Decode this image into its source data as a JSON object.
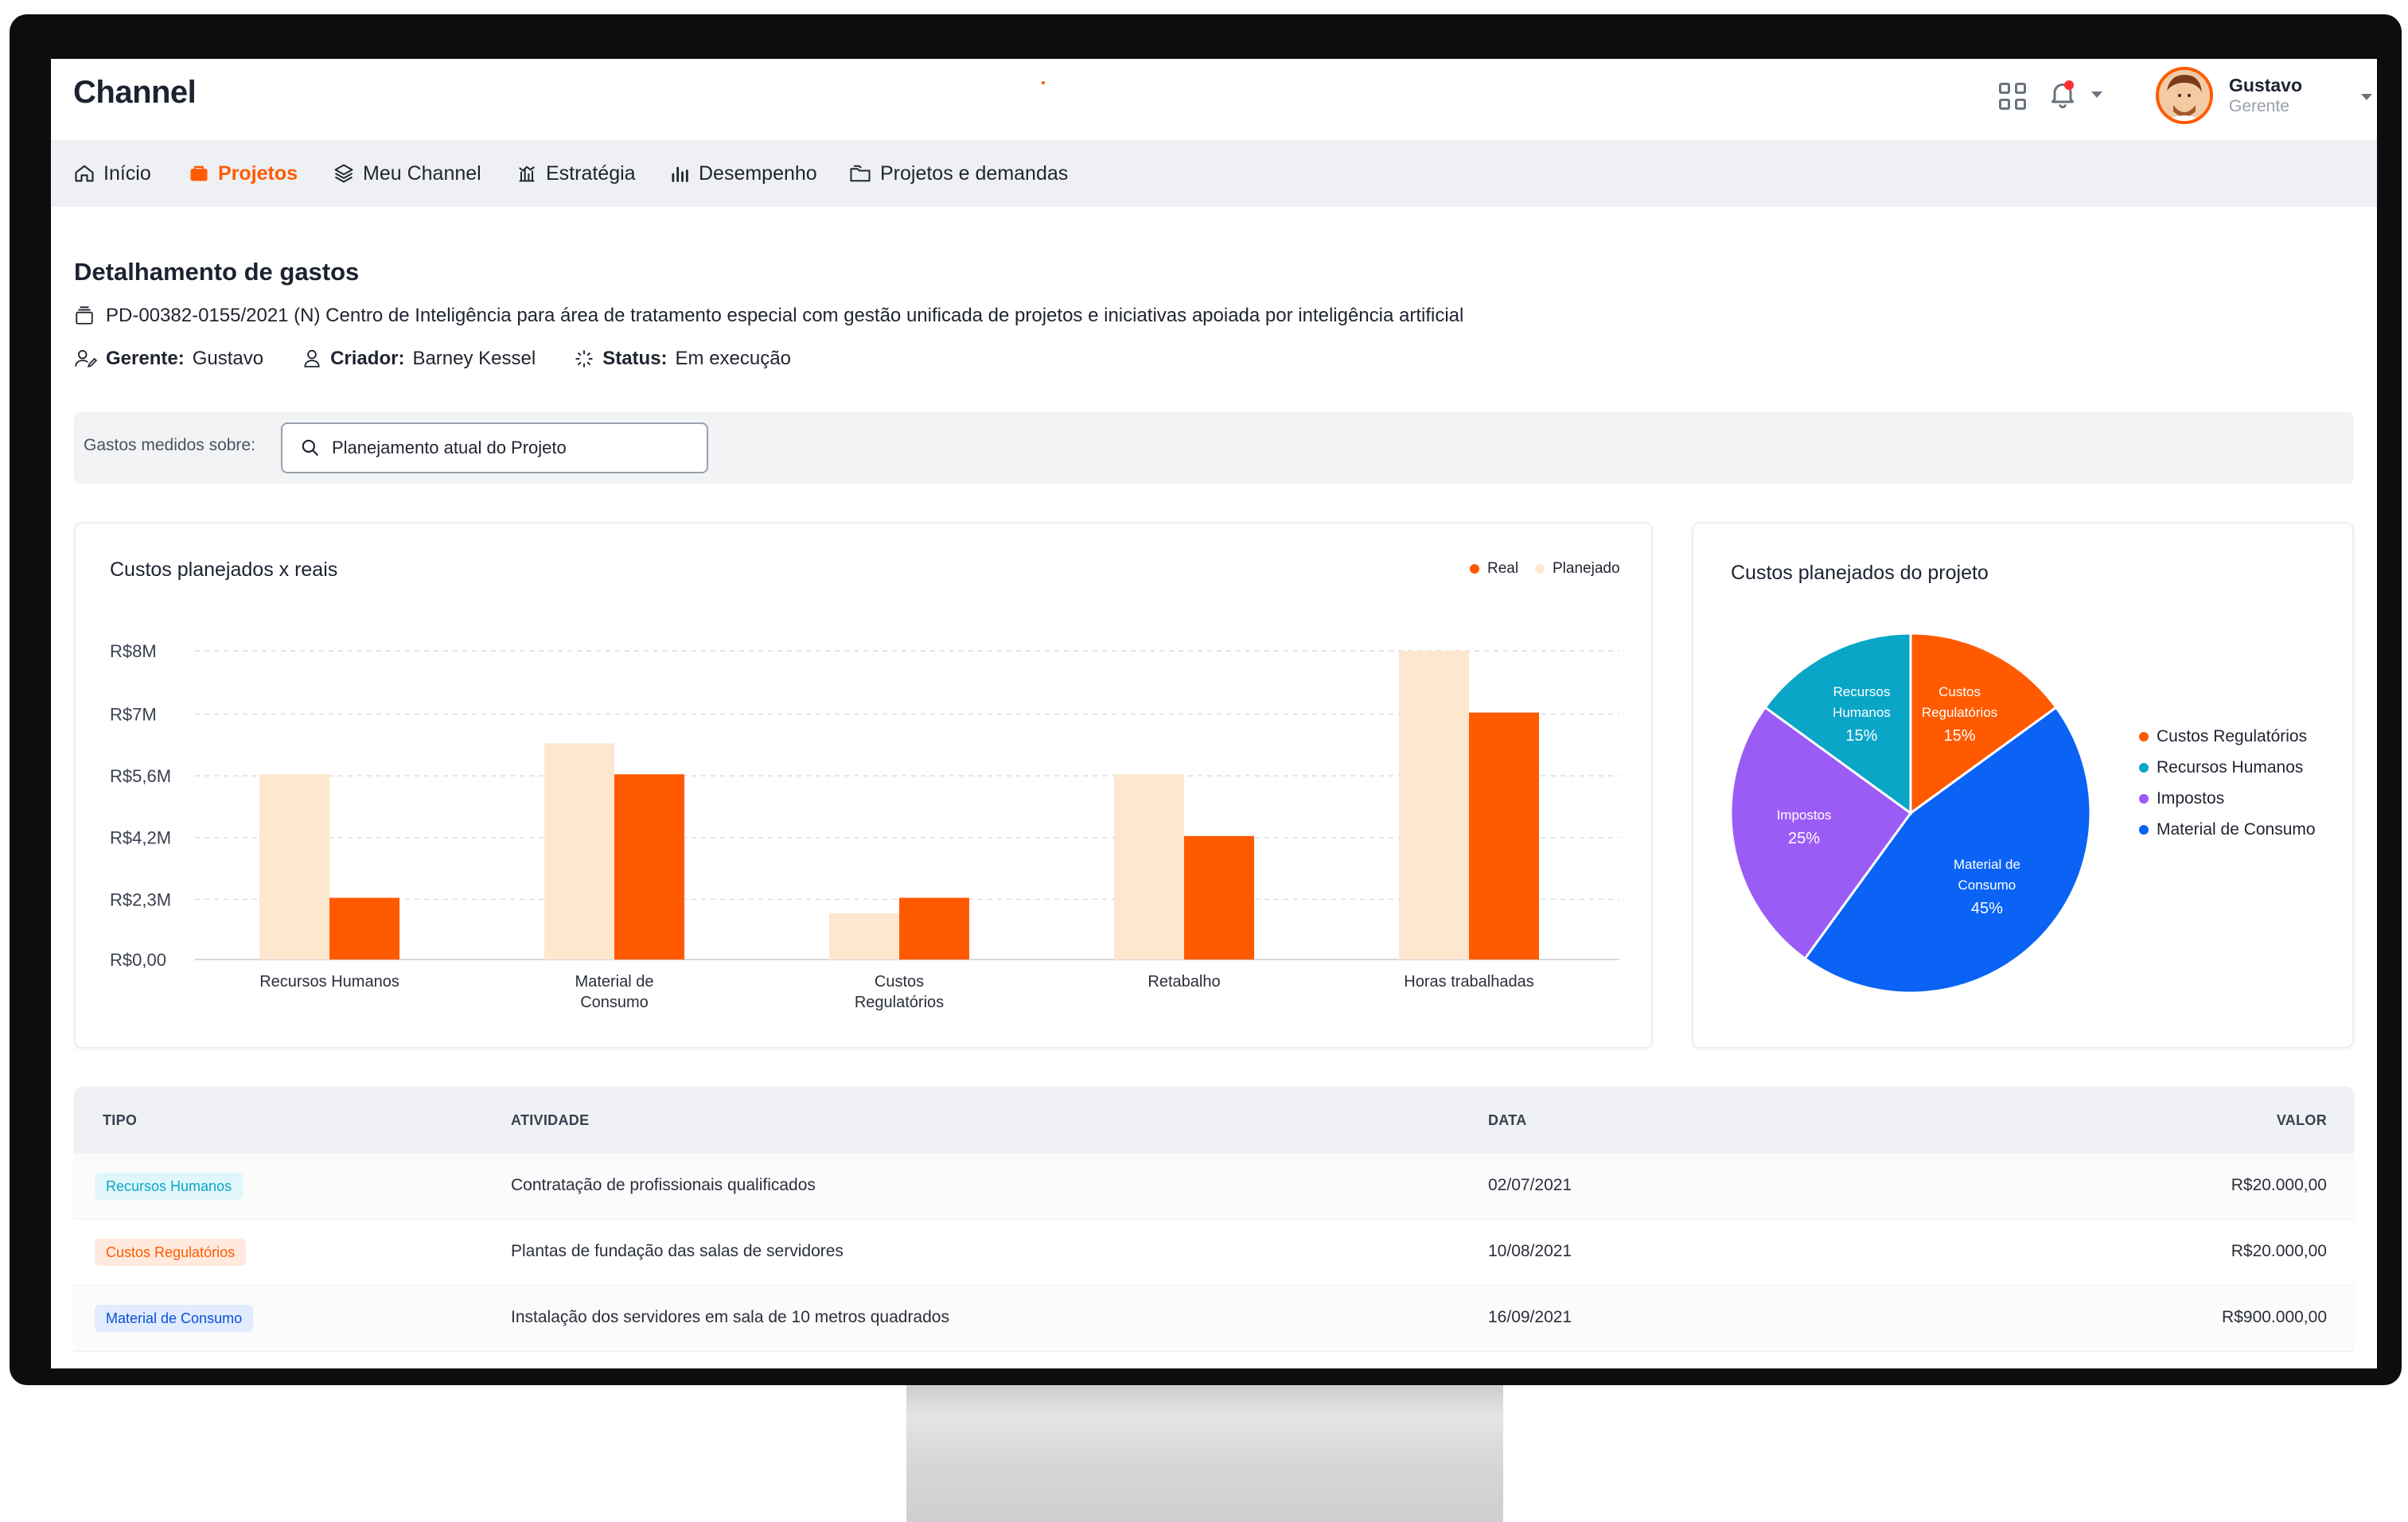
{
  "app": {
    "brand": "Channel",
    "user": {
      "name": "Gustavo",
      "role": "Gerente"
    },
    "icons": [
      "apps-grid-icon",
      "bell-icon",
      "chevron-down-icon",
      "avatar"
    ]
  },
  "nav": {
    "items": [
      {
        "label": "Início",
        "icon": "home-icon",
        "active": false
      },
      {
        "label": "Projetos",
        "icon": "briefcase-icon",
        "active": true
      },
      {
        "label": "Meu Channel",
        "icon": "layers-icon",
        "active": false
      },
      {
        "label": "Estratégia",
        "icon": "strategy-icon",
        "active": false
      },
      {
        "label": "Desempenho",
        "icon": "bar-chart-icon",
        "active": false
      },
      {
        "label": "Projetos e demandas",
        "icon": "folders-icon",
        "active": false
      }
    ]
  },
  "header": {
    "title": "Detalhamento de gastos",
    "project": "PD-00382-0155/2021 (N) Centro de Inteligência para área de tratamento especial com gestão unificada de projetos e iniciativas apoiada por inteligência artificial",
    "manager_label": "Gerente:",
    "manager": "Gustavo",
    "creator_label": "Criador:",
    "creator": "Barney Kessel",
    "status_label": "Status:",
    "status": "Em execução"
  },
  "filter": {
    "label": "Gastos medidos sobre:",
    "value": "Planejamento atual do Projeto"
  },
  "colors": {
    "accent": "#FF5A00",
    "planned": "#FDE7CF",
    "teal": "#0AA6C8",
    "purple": "#9B5CF6",
    "blue": "#0A63F5"
  },
  "chart_data": [
    {
      "type": "bar",
      "title": "Custos planejados x reais",
      "categories": [
        "Recursos Humanos",
        "Material de Consumo",
        "Custos Regulatórios",
        "Retabalho",
        "Horas trabalhadas"
      ],
      "category_lines": [
        [
          "Recursos Humanos"
        ],
        [
          "Material de",
          "Consumo"
        ],
        [
          "Custos",
          "Regulatórios"
        ],
        [
          "Retabalho"
        ],
        [
          "Horas trabalhadas"
        ]
      ],
      "series": [
        {
          "name": "Planejado",
          "color": "#FDE7CF",
          "values": [
            6.0,
            7.0,
            1.5,
            6.0,
            10.0
          ]
        },
        {
          "name": "Real",
          "color": "#FF5A00",
          "values": [
            2.0,
            6.0,
            2.0,
            4.0,
            8.0
          ]
        }
      ],
      "legend": [
        "Real",
        "Planejado"
      ],
      "legend_position": "top-right",
      "y_ticks": [
        "R$0,00",
        "R$2,3M",
        "R$4,2M",
        "R$5,6M",
        "R$7M",
        "R$8M"
      ],
      "ylim": [
        0,
        10
      ],
      "grid": true
    },
    {
      "type": "pie",
      "title": "Custos planejados do projeto",
      "slices": [
        {
          "label": "Custos Regulatórios",
          "lines": [
            "Custos",
            "Regulatórios"
          ],
          "value": 15,
          "pct": "15%",
          "color": "#FF5A00"
        },
        {
          "label": "Material de Consumo",
          "lines": [
            "Material de",
            "Consumo"
          ],
          "value": 45,
          "pct": "45%",
          "color": "#0A63F5"
        },
        {
          "label": "Impostos",
          "lines": [
            "Impostos"
          ],
          "value": 25,
          "pct": "25%",
          "color": "#9B5CF6"
        },
        {
          "label": "Recursos Humanos",
          "lines": [
            "Recursos",
            "Humanos"
          ],
          "value": 15,
          "pct": "15%",
          "color": "#0AA6C8"
        }
      ],
      "legend": [
        {
          "label": "Custos Regulatórios",
          "color": "#FF5A00"
        },
        {
          "label": "Recursos Humanos",
          "color": "#0AA6C8"
        },
        {
          "label": "Impostos",
          "color": "#9B5CF6"
        },
        {
          "label": "Material de Consumo",
          "color": "#0A63F5"
        }
      ],
      "legend_position": "right"
    }
  ],
  "table": {
    "headers": {
      "tipo": "TIPO",
      "atividade": "ATIVIDADE",
      "data": "DATA",
      "valor": "VALOR"
    },
    "rows": [
      {
        "tipo": "Recursos Humanos",
        "tipo_color": "#0AA6C8",
        "tipo_bg": "#E0F6FB",
        "atividade": "Contratação de profissionais qualificados",
        "data": "02/07/2021",
        "valor": "R$20.000,00"
      },
      {
        "tipo": "Custos Regulatórios",
        "tipo_color": "#FF5A00",
        "tipo_bg": "#FFEADD",
        "atividade": "Plantas de fundação das salas de servidores",
        "data": "10/08/2021",
        "valor": "R$20.000,00"
      },
      {
        "tipo": "Material de Consumo",
        "tipo_color": "#0A4FD8",
        "tipo_bg": "#E1ECFE",
        "atividade": "Instalação dos servidores em sala de 10 metros quadrados",
        "data": "16/09/2021",
        "valor": "R$900.000,00"
      }
    ]
  }
}
